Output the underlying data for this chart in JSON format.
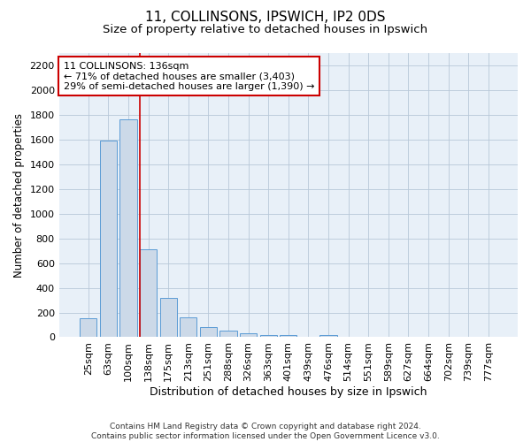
{
  "title1": "11, COLLINSONS, IPSWICH, IP2 0DS",
  "title2": "Size of property relative to detached houses in Ipswich",
  "xlabel": "Distribution of detached houses by size in Ipswich",
  "ylabel": "Number of detached properties",
  "categories": [
    "25sqm",
    "63sqm",
    "100sqm",
    "138sqm",
    "175sqm",
    "213sqm",
    "251sqm",
    "288sqm",
    "326sqm",
    "363sqm",
    "401sqm",
    "439sqm",
    "476sqm",
    "514sqm",
    "551sqm",
    "589sqm",
    "627sqm",
    "664sqm",
    "702sqm",
    "739sqm",
    "777sqm"
  ],
  "values": [
    155,
    1590,
    1760,
    710,
    315,
    160,
    85,
    50,
    30,
    20,
    20,
    0,
    20,
    0,
    0,
    0,
    0,
    0,
    0,
    0,
    0
  ],
  "bar_color": "#ccd9e8",
  "bar_edge_color": "#5b9bd5",
  "grid_color": "#b8c8d8",
  "background_color": "#e8f0f8",
  "vline_color": "#cc0000",
  "vline_index": 3,
  "annotation_text": "11 COLLINSONS: 136sqm\n← 71% of detached houses are smaller (3,403)\n29% of semi-detached houses are larger (1,390) →",
  "annotation_box_facecolor": "#ffffff",
  "annotation_box_edgecolor": "#cc0000",
  "ylim": [
    0,
    2300
  ],
  "yticks": [
    0,
    200,
    400,
    600,
    800,
    1000,
    1200,
    1400,
    1600,
    1800,
    2000,
    2200
  ],
  "footer": "Contains HM Land Registry data © Crown copyright and database right 2024.\nContains public sector information licensed under the Open Government Licence v3.0.",
  "title1_fontsize": 11,
  "title2_fontsize": 9.5,
  "xlabel_fontsize": 9,
  "ylabel_fontsize": 8.5,
  "tick_fontsize": 8,
  "footer_fontsize": 6.5,
  "annotation_fontsize": 8
}
